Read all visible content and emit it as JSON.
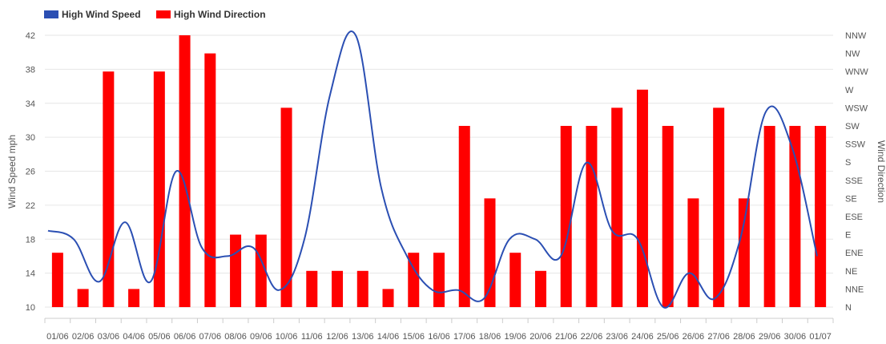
{
  "chart_data": {
    "type": "bar+line",
    "categories": [
      "01/06",
      "02/06",
      "03/06",
      "04/06",
      "05/06",
      "06/06",
      "07/06",
      "08/06",
      "09/06",
      "10/06",
      "11/06",
      "12/06",
      "13/06",
      "14/06",
      "15/06",
      "16/06",
      "17/06",
      "18/06",
      "19/06",
      "20/06",
      "21/06",
      "22/06",
      "23/06",
      "24/06",
      "25/06",
      "26/06",
      "27/06",
      "28/06",
      "29/06",
      "30/06",
      "01/07"
    ],
    "series": [
      {
        "name": "High Wind Speed",
        "type": "line",
        "axis": "left",
        "color": "#2b4fb3",
        "values": [
          19,
          18,
          13,
          20,
          13,
          26,
          17,
          16,
          17,
          12,
          18,
          35,
          42,
          24,
          16,
          12,
          12,
          11,
          18,
          18,
          16,
          27,
          19,
          18,
          10,
          14,
          11,
          18,
          33,
          29,
          16
        ]
      },
      {
        "name": "High Wind Direction",
        "type": "bar",
        "axis": "right",
        "color": "#ff0000",
        "values": [
          "ENE",
          "NNE",
          "WNW",
          "NNE",
          "WNW",
          "NNW",
          "NW",
          "E",
          "E",
          "WSW",
          "NE",
          "NE",
          "NE",
          "NNE",
          "ENE",
          "ENE",
          "SW",
          "SE",
          "ENE",
          "NE",
          "SW",
          "SW",
          "WSW",
          "W",
          "SW",
          "SE",
          "WSW",
          "SE",
          "SW",
          "SW",
          "SW"
        ]
      }
    ],
    "y_left": {
      "label": "Wind Speed mph",
      "ticks": [
        10,
        14,
        18,
        22,
        26,
        30,
        34,
        38,
        42
      ],
      "ylim": [
        10,
        42
      ]
    },
    "y_right": {
      "label": "Wind Direction",
      "categories": [
        "N",
        "NNE",
        "NE",
        "ENE",
        "E",
        "ESE",
        "SE",
        "SSE",
        "S",
        "SSW",
        "SW",
        "WSW",
        "W",
        "WNW",
        "NW",
        "NNW"
      ]
    },
    "legend_placement": "top-left",
    "grid": true
  }
}
